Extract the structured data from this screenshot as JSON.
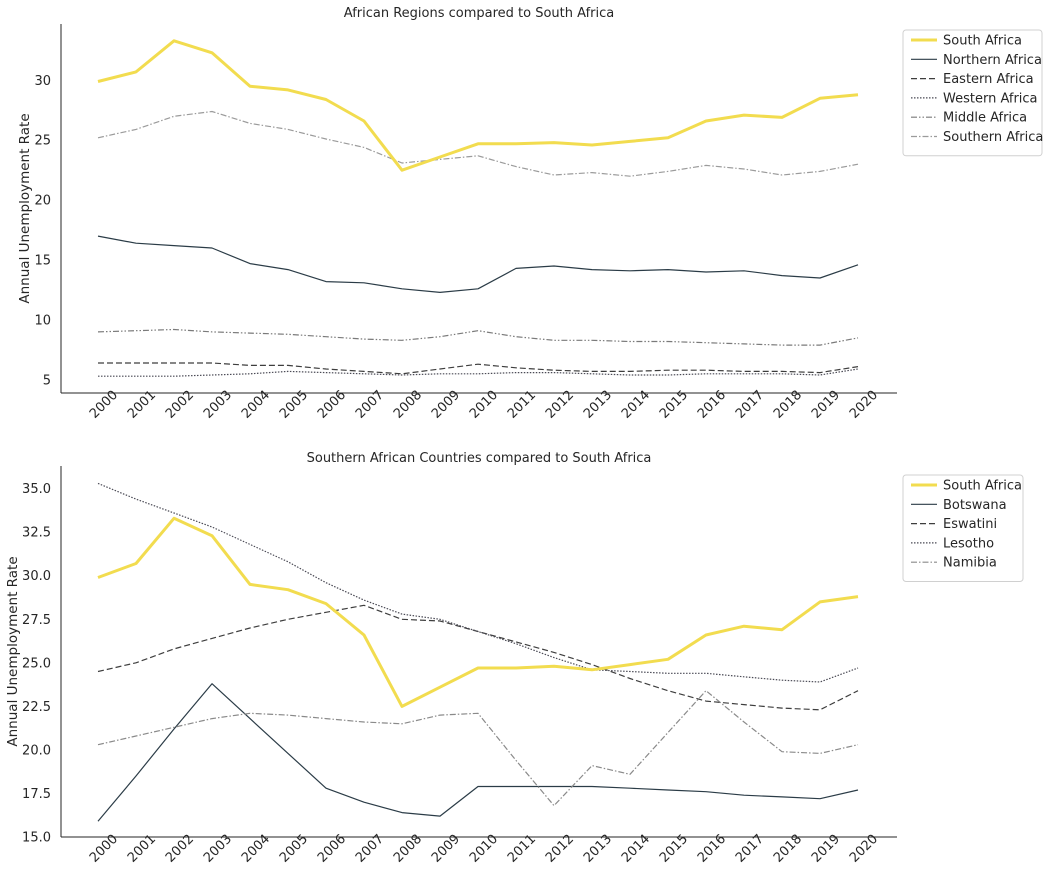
{
  "chart_data": [
    {
      "type": "line",
      "title": "African Regions compared to South Africa",
      "xlabel": "",
      "ylabel": "Annual Unemployment Rate",
      "categories": [
        "2000",
        "2001",
        "2002",
        "2003",
        "2004",
        "2005",
        "2006",
        "2007",
        "2008",
        "2009",
        "2010",
        "2011",
        "2012",
        "2013",
        "2014",
        "2015",
        "2016",
        "2017",
        "2018",
        "2019",
        "2020"
      ],
      "yticks": [
        "5",
        "10",
        "15",
        "20",
        "25",
        "30"
      ],
      "ylim": [
        3.9,
        34.7
      ],
      "grid": false,
      "legend": "outside-top-right",
      "series": [
        {
          "name": "South Africa",
          "color": "#f2dc4f",
          "style": "solid",
          "width": 3,
          "values": [
            29.9,
            30.7,
            33.3,
            32.3,
            29.5,
            29.2,
            28.4,
            26.6,
            22.5,
            23.6,
            24.7,
            24.7,
            24.8,
            24.6,
            24.9,
            25.2,
            26.6,
            27.1,
            26.9,
            28.5,
            28.8
          ]
        },
        {
          "name": "Northern Africa",
          "color": "#2b3c47",
          "style": "solid",
          "width": 1.2,
          "values": [
            17.0,
            16.4,
            16.2,
            16.0,
            14.7,
            14.2,
            13.2,
            13.1,
            12.6,
            12.3,
            12.6,
            14.3,
            14.5,
            14.2,
            14.1,
            14.2,
            14.0,
            14.1,
            13.7,
            13.5,
            14.6
          ]
        },
        {
          "name": "Eastern Africa",
          "color": "#3e3e3e",
          "style": "dashed",
          "width": 1.2,
          "values": [
            6.4,
            6.4,
            6.4,
            6.4,
            6.2,
            6.2,
            5.9,
            5.7,
            5.5,
            5.9,
            6.3,
            6.0,
            5.8,
            5.7,
            5.7,
            5.8,
            5.8,
            5.7,
            5.7,
            5.6,
            6.1
          ]
        },
        {
          "name": "Western Africa",
          "color": "#4a4a55",
          "style": "dotted",
          "width": 1.2,
          "values": [
            5.3,
            5.3,
            5.3,
            5.4,
            5.5,
            5.7,
            5.6,
            5.5,
            5.4,
            5.5,
            5.5,
            5.6,
            5.6,
            5.5,
            5.4,
            5.4,
            5.5,
            5.5,
            5.5,
            5.4,
            5.9
          ]
        },
        {
          "name": "Middle Africa",
          "color": "#7a7a7a",
          "style": "dashdotdot",
          "width": 1.2,
          "values": [
            9.0,
            9.1,
            9.2,
            9.0,
            8.9,
            8.8,
            8.6,
            8.4,
            8.3,
            8.6,
            9.1,
            8.6,
            8.3,
            8.3,
            8.2,
            8.2,
            8.1,
            8.0,
            7.9,
            7.9,
            8.5
          ]
        },
        {
          "name": "Southern Africa",
          "color": "#9b9b9b",
          "style": "dashdot",
          "width": 1.2,
          "values": [
            25.2,
            25.9,
            27.0,
            27.4,
            26.4,
            25.9,
            25.1,
            24.4,
            23.1,
            23.4,
            23.7,
            22.8,
            22.1,
            22.3,
            22.0,
            22.4,
            22.9,
            22.6,
            22.1,
            22.4,
            23.0
          ]
        }
      ]
    },
    {
      "type": "line",
      "title": "Southern African Countries compared to South Africa",
      "xlabel": "",
      "ylabel": "Annual Unemployment Rate",
      "categories": [
        "2000",
        "2001",
        "2002",
        "2003",
        "2004",
        "2005",
        "2006",
        "2007",
        "2008",
        "2009",
        "2010",
        "2011",
        "2012",
        "2013",
        "2014",
        "2015",
        "2016",
        "2017",
        "2018",
        "2019",
        "2020"
      ],
      "yticks": [
        "15.0",
        "17.5",
        "20.0",
        "22.5",
        "25.0",
        "27.5",
        "30.0",
        "32.5",
        "35.0"
      ],
      "ylim": [
        15.0,
        36.3
      ],
      "grid": false,
      "legend": "outside-top-right",
      "series": [
        {
          "name": "South Africa",
          "color": "#f2dc4f",
          "style": "solid",
          "width": 3,
          "values": [
            29.9,
            30.7,
            33.3,
            32.3,
            29.5,
            29.2,
            28.4,
            26.6,
            22.5,
            23.6,
            24.7,
            24.7,
            24.8,
            24.6,
            24.9,
            25.2,
            26.6,
            27.1,
            26.9,
            28.5,
            28.8
          ]
        },
        {
          "name": "Botswana",
          "color": "#2b3c47",
          "style": "solid",
          "width": 1.2,
          "values": [
            15.9,
            18.5,
            21.2,
            23.8,
            21.8,
            19.8,
            17.8,
            17.0,
            16.4,
            16.2,
            17.9,
            17.9,
            17.9,
            17.9,
            17.8,
            17.7,
            17.6,
            17.4,
            17.3,
            17.2,
            17.7
          ]
        },
        {
          "name": "Eswatini",
          "color": "#3e3e3e",
          "style": "dashed",
          "width": 1.2,
          "values": [
            24.5,
            25.0,
            25.8,
            26.4,
            27.0,
            27.5,
            27.9,
            28.3,
            27.5,
            27.4,
            26.8,
            26.2,
            25.6,
            24.9,
            24.1,
            23.4,
            22.8,
            22.6,
            22.4,
            22.3,
            23.4
          ]
        },
        {
          "name": "Lesotho",
          "color": "#4a4a55",
          "style": "dotted",
          "width": 1.2,
          "values": [
            35.3,
            34.4,
            33.6,
            32.8,
            31.8,
            30.8,
            29.6,
            28.6,
            27.8,
            27.5,
            26.8,
            26.1,
            25.3,
            24.6,
            24.5,
            24.4,
            24.4,
            24.2,
            24.0,
            23.9,
            24.7
          ]
        },
        {
          "name": "Namibia",
          "color": "#8a8a8a",
          "style": "dashdot",
          "width": 1.2,
          "values": [
            20.3,
            20.8,
            21.3,
            21.8,
            22.1,
            22.0,
            21.8,
            21.6,
            21.5,
            22.0,
            22.1,
            19.4,
            16.8,
            19.1,
            18.6,
            21.0,
            23.4,
            21.6,
            19.9,
            19.8,
            20.3
          ]
        }
      ]
    }
  ]
}
